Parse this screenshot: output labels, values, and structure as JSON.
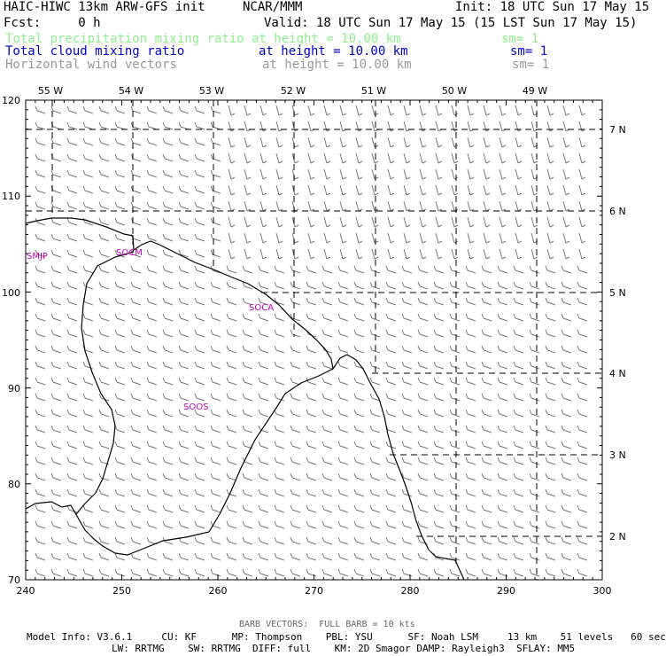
{
  "header": {
    "model_title": "HAIC-HIWC 13km ARW-GFS init",
    "org": "NCAR/MMM",
    "init": "Init: 18 UTC Sun 17 May 15",
    "fcst": "Fcst:     0 h",
    "valid": "Valid: 18 UTC Sun 17 May 15 (15 LST Sun 17 May 15)",
    "fields": [
      {
        "name": "Total precipitation mixing ratio",
        "height": "at height = 10.00 km",
        "sm": "sm= 1",
        "color": "#90ee90"
      },
      {
        "name": "Total cloud mixing ratio",
        "height": "at height = 10.00 km",
        "sm": "sm= 1",
        "color": "#0000cc"
      },
      {
        "name": "Horizontal wind vectors",
        "height": "at height = 10.00 km",
        "sm": "sm= 1",
        "color": "#999999"
      }
    ]
  },
  "map": {
    "x_ticks": [
      "240",
      "250",
      "260",
      "270",
      "280",
      "290",
      "300"
    ],
    "y_ticks": [
      "70",
      "80",
      "90",
      "100",
      "110",
      "120"
    ],
    "lon_labels": [
      "55 W",
      "54 W",
      "53 W",
      "52 W",
      "51 W",
      "50 W",
      "49 W"
    ],
    "lat_labels": [
      "7 N",
      "6 N",
      "5 N",
      "4 N",
      "3 N",
      "2 N"
    ],
    "stations": [
      "SMJP",
      "SOCM",
      "SOCA",
      "SOOS"
    ],
    "coast_color": "#000000",
    "grid_color": "#000000",
    "barb_color": "#777777"
  },
  "footer": {
    "barb_note": "BARB VECTORS:  FULL BARB = 10 kts",
    "line1": "Model Info: V3.6.1     CU: KF      MP: Thompson    PBL: YSU      SF: Noah LSM     13 km    51 levels   60 sec",
    "line2": "LW: RRTMG    SW: RRTMG  DIFF: full    KM: 2D Smagor DAMP: Rayleigh3  SFLAY: MM5"
  }
}
